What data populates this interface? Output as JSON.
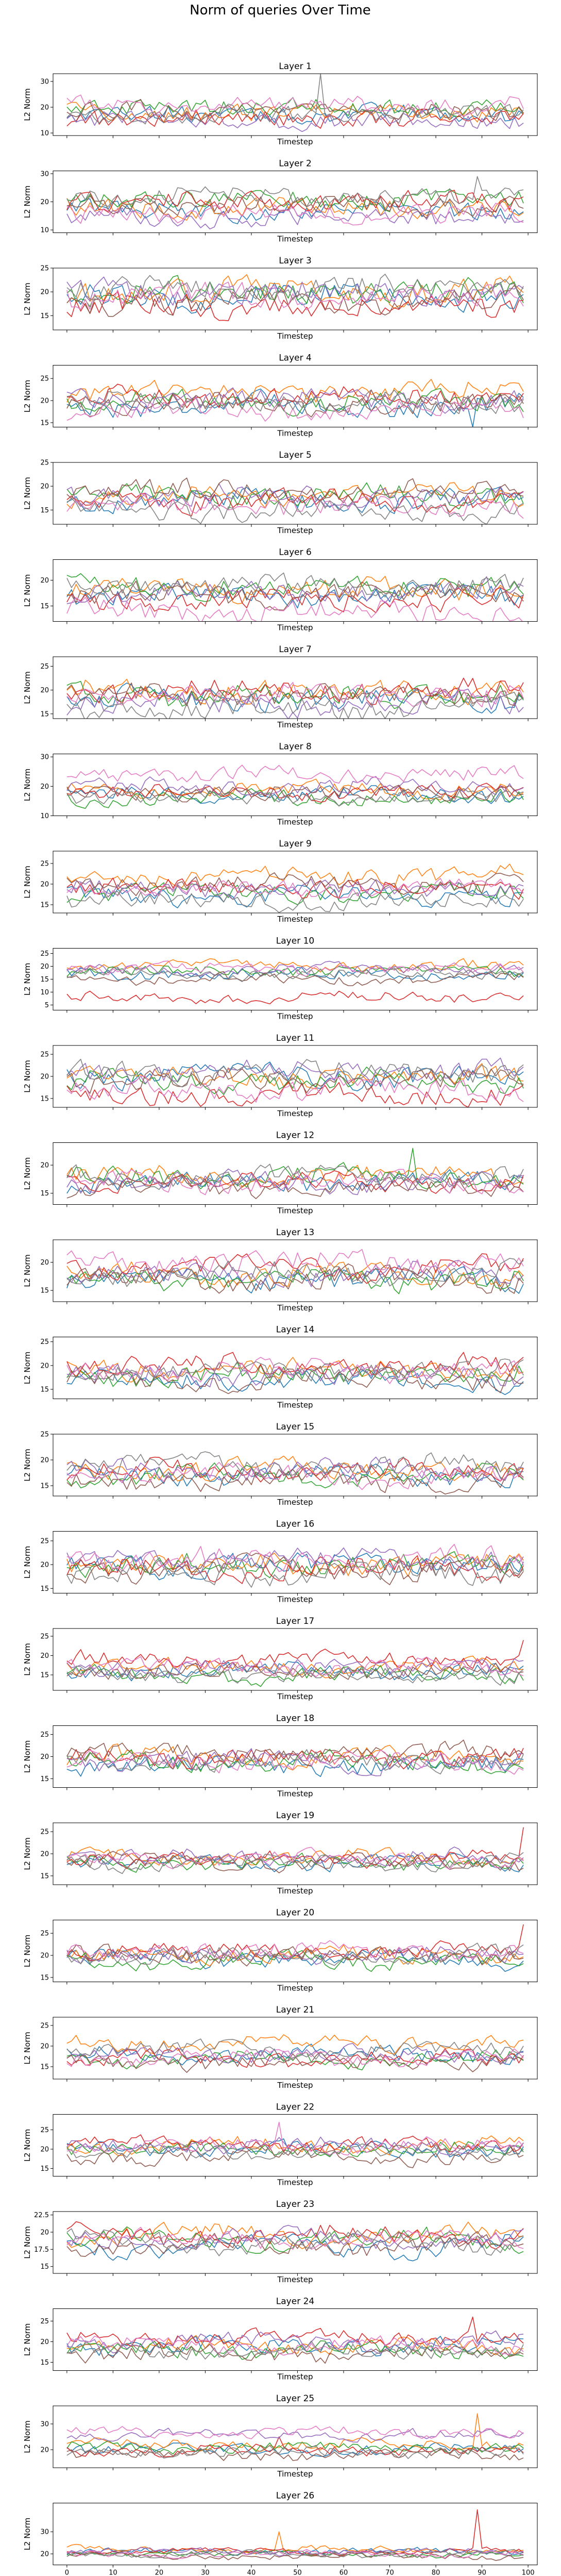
{
  "chart_data": {
    "type": "line",
    "title": "Norm of queries Over Time",
    "xlabel": "Timestep",
    "ylabel": "L2 Norm",
    "x_ticks": [
      0,
      10,
      20,
      30,
      40,
      50,
      60,
      70,
      80,
      90,
      100
    ],
    "xlim": [
      -3,
      102
    ],
    "num_timesteps": 100,
    "series_colors": [
      "#1f77b4",
      "#ff7f0e",
      "#2ca02c",
      "#d62728",
      "#9467bd",
      "#8c564b",
      "#e377c2",
      "#7f7f7f"
    ],
    "series_count": 8,
    "subplots": [
      {
        "title": "Layer 1",
        "ylim": [
          9,
          33
        ],
        "y_ticks": [
          10,
          20,
          30
        ],
        "levels": [
          17,
          18,
          20,
          16,
          15,
          19,
          21,
          17
        ],
        "spread": 3.0,
        "spikes": [
          [
            55,
            33,
            7
          ]
        ]
      },
      {
        "title": "Layer 2",
        "ylim": [
          9,
          31
        ],
        "y_ticks": [
          10,
          20,
          30
        ],
        "levels": [
          17,
          18,
          21,
          20,
          14,
          19,
          16,
          22
        ],
        "spread": 3.0,
        "spikes": [
          [
            89,
            29,
            7
          ]
        ]
      },
      {
        "title": "Layer 3",
        "ylim": [
          12,
          25
        ],
        "y_ticks": [
          15,
          20,
          25
        ],
        "levels": [
          19,
          20,
          20,
          17,
          20,
          18,
          19,
          21
        ],
        "spread": 2.2,
        "spikes": []
      },
      {
        "title": "Layer 4",
        "ylim": [
          14,
          28
        ],
        "y_ticks": [
          15,
          20,
          25
        ],
        "levels": [
          19,
          22,
          20,
          21,
          20,
          19,
          18,
          20
        ],
        "spread": 2.0,
        "spikes": [
          [
            88,
            14,
            0
          ]
        ]
      },
      {
        "title": "Layer 5",
        "ylim": [
          12,
          25
        ],
        "y_ticks": [
          15,
          20,
          25
        ],
        "levels": [
          17,
          18,
          18,
          17,
          18,
          19,
          16,
          15
        ],
        "spread": 1.8,
        "spikes": []
      },
      {
        "title": "Layer 6",
        "ylim": [
          12,
          24
        ],
        "y_ticks": [
          15,
          20
        ],
        "levels": [
          17,
          18,
          19,
          16,
          18,
          17,
          14,
          19
        ],
        "spread": 1.8,
        "spikes": []
      },
      {
        "title": "Layer 7",
        "ylim": [
          14,
          27
        ],
        "y_ticks": [
          15,
          20,
          25
        ],
        "levels": [
          18,
          20,
          19,
          20,
          17,
          19,
          19,
          16
        ],
        "spread": 2.0,
        "spikes": []
      },
      {
        "title": "Layer 8",
        "ylim": [
          10,
          31
        ],
        "y_ticks": [
          10,
          20,
          30
        ],
        "levels": [
          17,
          19,
          16,
          18,
          20,
          18,
          24,
          16
        ],
        "spread": 2.2,
        "spikes": []
      },
      {
        "title": "Layer 9",
        "ylim": [
          13,
          28
        ],
        "y_ticks": [
          15,
          20,
          25
        ],
        "levels": [
          17,
          22,
          18,
          19,
          19,
          20,
          19,
          16
        ],
        "spread": 1.8,
        "spikes": []
      },
      {
        "title": "Layer 10",
        "ylim": [
          3,
          27
        ],
        "y_ticks": [
          5,
          10,
          15,
          20,
          25
        ],
        "levels": [
          17,
          20,
          18,
          8,
          19,
          15,
          19,
          17
        ],
        "spread": 1.8,
        "spikes": []
      },
      {
        "title": "Layer 11",
        "ylim": [
          13,
          27
        ],
        "y_ticks": [
          15,
          20,
          25
        ],
        "levels": [
          20,
          20,
          19,
          16,
          21,
          19,
          17,
          21
        ],
        "spread": 2.0,
        "spikes": []
      },
      {
        "title": "Layer 12",
        "ylim": [
          13,
          24
        ],
        "y_ticks": [
          15,
          20
        ],
        "levels": [
          17,
          18,
          18,
          17,
          17,
          16,
          17,
          18
        ],
        "spread": 1.4,
        "spikes": [
          [
            75,
            23,
            2
          ]
        ]
      },
      {
        "title": "Layer 13",
        "ylim": [
          13,
          24
        ],
        "y_ticks": [
          15,
          20
        ],
        "levels": [
          17,
          18,
          17,
          19,
          18,
          17,
          20,
          18
        ],
        "spread": 1.6,
        "spikes": []
      },
      {
        "title": "Layer 14",
        "ylim": [
          13,
          26
        ],
        "y_ticks": [
          15,
          20,
          25
        ],
        "levels": [
          17,
          19,
          18,
          20,
          18,
          17,
          19,
          19
        ],
        "spread": 1.8,
        "spikes": []
      },
      {
        "title": "Layer 15",
        "ylim": [
          13,
          25
        ],
        "y_ticks": [
          15,
          20,
          25
        ],
        "levels": [
          17,
          18,
          17,
          18,
          18,
          16,
          17,
          19
        ],
        "spread": 1.6,
        "spikes": []
      },
      {
        "title": "Layer 16",
        "ylim": [
          14,
          27
        ],
        "y_ticks": [
          15,
          20,
          25
        ],
        "levels": [
          20,
          20,
          20,
          19,
          21,
          19,
          21,
          18
        ],
        "spread": 2.0,
        "spikes": []
      },
      {
        "title": "Layer 17",
        "ylim": [
          11,
          27
        ],
        "y_ticks": [
          15,
          20,
          25
        ],
        "levels": [
          16,
          17,
          15,
          19,
          17,
          16,
          17,
          15
        ],
        "spread": 1.8,
        "spikes": [
          [
            99,
            24,
            3
          ]
        ]
      },
      {
        "title": "Layer 18",
        "ylim": [
          13,
          27
        ],
        "y_ticks": [
          15,
          20,
          25
        ],
        "levels": [
          18,
          20,
          19,
          20,
          19,
          21,
          19,
          19
        ],
        "spread": 1.8,
        "spikes": []
      },
      {
        "title": "Layer 19",
        "ylim": [
          13,
          27
        ],
        "y_ticks": [
          15,
          20,
          25
        ],
        "levels": [
          18,
          19,
          18,
          19,
          19,
          18,
          19,
          18
        ],
        "spread": 1.4,
        "spikes": [
          [
            99,
            26,
            3
          ]
        ]
      },
      {
        "title": "Layer 20",
        "ylim": [
          14,
          28
        ],
        "y_ticks": [
          15,
          20,
          25
        ],
        "levels": [
          19,
          20,
          19,
          21,
          20,
          20,
          21,
          20
        ],
        "spread": 1.6,
        "spikes": [
          [
            99,
            27,
            3
          ]
        ]
      },
      {
        "title": "Layer 21",
        "ylim": [
          12,
          27
        ],
        "y_ticks": [
          15,
          20,
          25
        ],
        "levels": [
          18,
          21,
          17,
          17,
          18,
          16,
          17,
          19
        ],
        "spread": 1.6,
        "spikes": []
      },
      {
        "title": "Layer 22",
        "ylim": [
          13,
          29
        ],
        "y_ticks": [
          15,
          20,
          25
        ],
        "levels": [
          20,
          21,
          20,
          21,
          21,
          18,
          21,
          19
        ],
        "spread": 1.6,
        "spikes": [
          [
            46,
            27,
            6
          ]
        ]
      },
      {
        "title": "Layer 23",
        "ylim": [
          14,
          23
        ],
        "y_ticks": [
          15.0,
          17.5,
          20.0,
          22.5
        ],
        "levels": [
          18,
          19.5,
          19,
          19.5,
          19,
          18,
          19,
          18.5
        ],
        "spread": 1.1,
        "spikes": []
      },
      {
        "title": "Layer 24",
        "ylim": [
          13,
          28
        ],
        "y_ticks": [
          15,
          20,
          25
        ],
        "levels": [
          19,
          19,
          18,
          21,
          20,
          17,
          19,
          18
        ],
        "spread": 1.6,
        "spikes": [
          [
            88,
            26,
            3
          ]
        ]
      },
      {
        "title": "Layer 25",
        "ylim": [
          13,
          37
        ],
        "y_ticks": [
          20,
          30
        ],
        "levels": [
          20,
          22,
          21,
          20,
          26,
          18,
          27,
          19
        ],
        "spread": 1.8,
        "spikes": [
          [
            89,
            34,
            1
          ],
          [
            46,
            25,
            3
          ]
        ]
      },
      {
        "title": "Layer 26",
        "ylim": [
          15,
          43
        ],
        "y_ticks": [
          20,
          30
        ],
        "levels": [
          21,
          22,
          20,
          21,
          21,
          19,
          20,
          20
        ],
        "spread": 1.2,
        "spikes": [
          [
            89,
            40,
            3
          ],
          [
            46,
            30,
            1
          ]
        ]
      }
    ]
  }
}
